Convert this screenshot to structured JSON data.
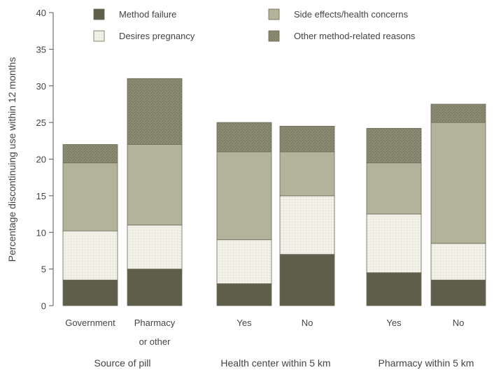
{
  "chart_data": {
    "type": "bar",
    "stacked": true,
    "ylabel": "Percentage discontinuing use within 12 months",
    "ylim": [
      0,
      40
    ],
    "yticks": [
      0,
      5,
      10,
      15,
      20,
      25,
      30,
      35,
      40
    ],
    "categories": [
      [
        "Government"
      ],
      [
        "Pharmacy",
        "or other"
      ],
      [
        "Yes"
      ],
      [
        "No"
      ],
      [
        "Yes"
      ],
      [
        "No"
      ]
    ],
    "groups": [
      {
        "label": "Source of pill",
        "bars": [
          0,
          1
        ]
      },
      {
        "label": "Health center within 5 km",
        "bars": [
          2,
          3
        ]
      },
      {
        "label": "Pharmacy within 5 km",
        "bars": [
          4,
          5
        ]
      }
    ],
    "series": [
      {
        "name": "Method failure",
        "color": "#5f5e4a",
        "values": [
          3.5,
          5,
          3,
          7,
          4.5,
          3.5
        ]
      },
      {
        "name": "Desires pregnancy",
        "color": "#f2f1e8",
        "values": [
          6.7,
          6,
          6,
          8,
          8,
          5
        ]
      },
      {
        "name": "Side effects/health concerns",
        "color": "#b3b29a",
        "values": [
          9.3,
          11,
          12,
          6,
          7,
          16.5
        ]
      },
      {
        "name": "Other method-related reasons",
        "color": "#8a8972",
        "values": [
          2.5,
          9,
          4,
          3.5,
          4.7,
          2.5
        ]
      }
    ],
    "legend_position": "top",
    "grid": false
  }
}
